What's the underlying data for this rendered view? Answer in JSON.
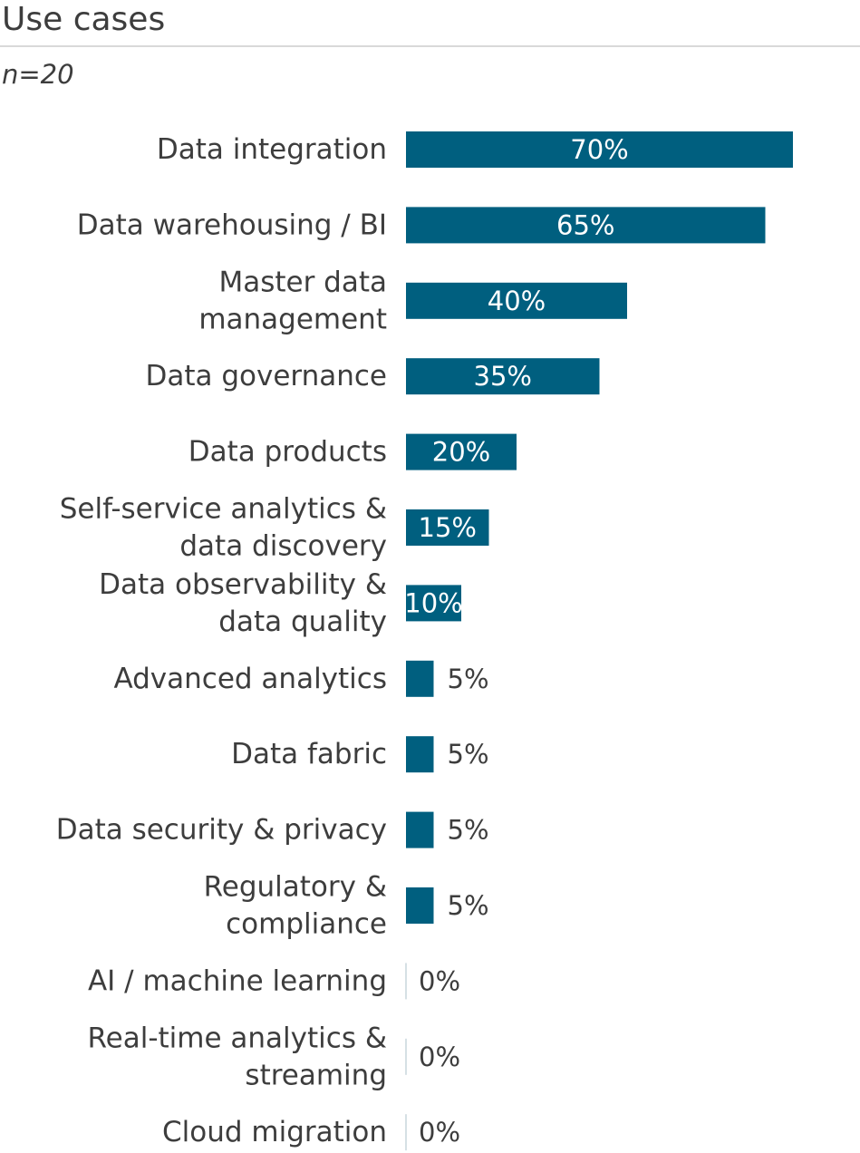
{
  "colors": {
    "bar": "#005f7f",
    "label_inside": "#ffffff",
    "label_outside": "#3d3d3d",
    "zero_line": "#c9d6dc"
  },
  "chart_data": {
    "type": "bar",
    "orientation": "horizontal",
    "title": "Use cases",
    "subtitle": "n=20",
    "categories": [
      [
        "Data integration"
      ],
      [
        "Data warehousing / BI"
      ],
      [
        "Master data",
        "management"
      ],
      [
        "Data governance"
      ],
      [
        "Data products"
      ],
      [
        "Self-service analytics &",
        "data discovery"
      ],
      [
        "Data observability &",
        "data quality"
      ],
      [
        "Advanced analytics"
      ],
      [
        "Data fabric"
      ],
      [
        "Data security & privacy"
      ],
      [
        "Regulatory &",
        "compliance"
      ],
      [
        "AI / machine learning"
      ],
      [
        "Real-time analytics &",
        "streaming"
      ],
      [
        "Cloud migration"
      ]
    ],
    "values": [
      70,
      65,
      40,
      35,
      20,
      15,
      10,
      5,
      5,
      5,
      5,
      0,
      0,
      0
    ],
    "value_labels": [
      "70%",
      "65%",
      "40%",
      "35%",
      "20%",
      "15%",
      "10%",
      "5%",
      "5%",
      "5%",
      "5%",
      "0%",
      "0%",
      "0%"
    ],
    "xlim": [
      0,
      70
    ],
    "grid": false,
    "legend": "none",
    "axes_visible": false
  }
}
